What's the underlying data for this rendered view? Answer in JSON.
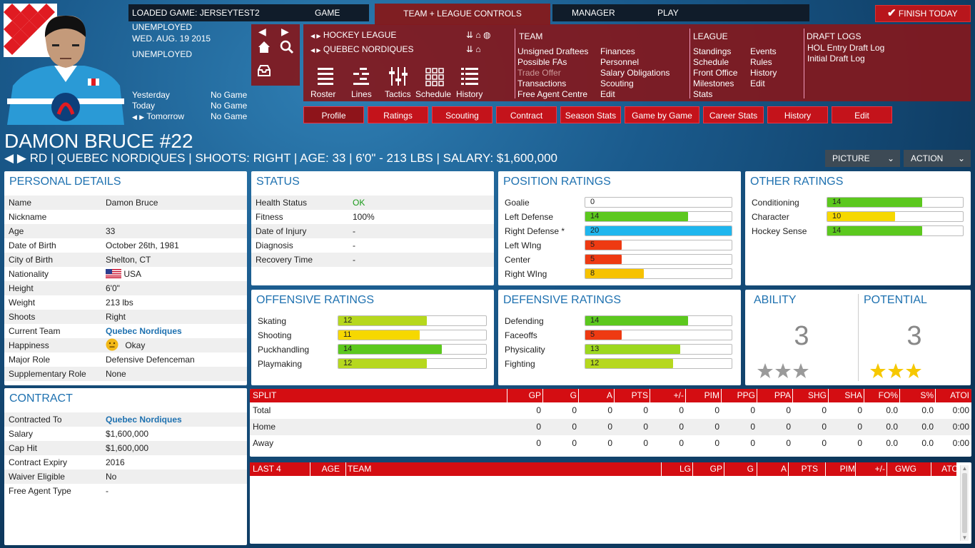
{
  "header": {
    "loaded_game_label": "LOADED GAME:",
    "loaded_game_value": "JERSEYTEST2",
    "game_tab": "GAME",
    "team_league_tab": "TEAM + LEAGUE CONTROLS",
    "manager_tab": "MANAGER",
    "play_tab": "PLAY",
    "finish_today": "FINISH TODAY",
    "status1": "UNEMPLOYED",
    "date": "WED. AUG. 19 2015",
    "status2": "UNEMPLOYED",
    "schedule": [
      {
        "day": "Yesterday",
        "game": "No Game"
      },
      {
        "day": "Today",
        "game": "No Game"
      },
      {
        "day": "Tomorrow",
        "game": "No Game"
      }
    ]
  },
  "controls": {
    "league": "HOCKEY LEAGUE",
    "team": "QUEBEC NORDIQUES",
    "tools": [
      "Roster",
      "Lines",
      "Tactics",
      "Schedule",
      "History"
    ],
    "team_menu_title": "TEAM",
    "team_menu_col1": [
      "Unsigned Draftees",
      "Possible FAs",
      "Trade Offer",
      "Transactions",
      "Free Agent Centre"
    ],
    "team_menu_col2": [
      "Finances",
      "Personnel",
      "Salary Obligations",
      "Scouting",
      "Edit"
    ],
    "league_menu_title": "LEAGUE",
    "league_menu_col1": [
      "Standings",
      "Schedule",
      "Front Office",
      "Milestones",
      "Stats"
    ],
    "league_menu_col2": [
      "Events",
      "Rules",
      "History",
      "Edit"
    ],
    "draft_title": "DRAFT LOGS",
    "draft_items": [
      "HOL Entry Draft Log",
      "Initial Draft Log"
    ]
  },
  "player_tabs": [
    "Profile",
    "Ratings",
    "Scouting",
    "Contract",
    "Season Stats",
    "Game by Game",
    "Career Stats",
    "History",
    "Edit"
  ],
  "player": {
    "name_number": "DAMON BRUCE #22",
    "info": "RD | QUEBEC NORDIQUES | SHOOTS: RIGHT | AGE: 33 | 6'0\" - 213 LBS | SALARY: $1,600,000",
    "picture_btn": "PICTURE",
    "action_btn": "ACTION"
  },
  "personal": {
    "title": "PERSONAL DETAILS",
    "rows": [
      {
        "label": "Name",
        "value": "Damon Bruce"
      },
      {
        "label": "Nickname",
        "value": ""
      },
      {
        "label": "Age",
        "value": "33"
      },
      {
        "label": "Date of Birth",
        "value": "October 26th, 1981"
      },
      {
        "label": "City of Birth",
        "value": "Shelton, CT"
      },
      {
        "label": "Nationality",
        "value": "USA"
      },
      {
        "label": "Height",
        "value": "6'0\""
      },
      {
        "label": "Weight",
        "value": "213 lbs"
      },
      {
        "label": "Shoots",
        "value": "Right"
      },
      {
        "label": "Current Team",
        "value": "Quebec Nordiques"
      },
      {
        "label": "Happiness",
        "value": "Okay"
      },
      {
        "label": "Major Role",
        "value": "Defensive Defenceman"
      },
      {
        "label": "Supplementary Role",
        "value": "None"
      }
    ]
  },
  "contract": {
    "title": "CONTRACT",
    "rows": [
      {
        "label": "Contracted To",
        "value": "Quebec Nordiques"
      },
      {
        "label": "Salary",
        "value": "$1,600,000"
      },
      {
        "label": "Cap Hit",
        "value": "$1,600,000"
      },
      {
        "label": "Contract Expiry",
        "value": "2016"
      },
      {
        "label": "Waiver Eligible",
        "value": "No"
      },
      {
        "label": "Free Agent Type",
        "value": "-"
      }
    ]
  },
  "status": {
    "title": "STATUS",
    "rows": [
      {
        "label": "Health Status",
        "value": "OK"
      },
      {
        "label": "Fitness",
        "value": "100%"
      },
      {
        "label": "Date of Injury",
        "value": "-"
      },
      {
        "label": "Diagnosis",
        "value": "-"
      },
      {
        "label": "Recovery Time",
        "value": "-"
      }
    ]
  },
  "position_ratings": {
    "title": "POSITION RATINGS",
    "rows": [
      {
        "label": "Goalie",
        "value": 0,
        "color": "#ffffff"
      },
      {
        "label": "Left Defense",
        "value": 14,
        "color": "#5cc81e"
      },
      {
        "label": "Right Defense *",
        "value": 20,
        "color": "#1fb6ee"
      },
      {
        "label": "Left WIng",
        "value": 5,
        "color": "#ee3a12"
      },
      {
        "label": "Center",
        "value": 5,
        "color": "#ee3a12"
      },
      {
        "label": "Right WIng",
        "value": 8,
        "color": "#f6c200"
      }
    ]
  },
  "other_ratings": {
    "title": "OTHER RATINGS",
    "rows": [
      {
        "label": "Conditioning",
        "value": 14,
        "color": "#5cc81e"
      },
      {
        "label": "Character",
        "value": 10,
        "color": "#f6d800"
      },
      {
        "label": "Hockey Sense",
        "value": 14,
        "color": "#5cc81e"
      }
    ]
  },
  "offensive_ratings": {
    "title": "OFFENSIVE RATINGS",
    "rows": [
      {
        "label": "Skating",
        "value": 12,
        "color": "#b6d81e"
      },
      {
        "label": "Shooting",
        "value": 11,
        "color": "#f6d800"
      },
      {
        "label": "Puckhandling",
        "value": 14,
        "color": "#5cc81e"
      },
      {
        "label": "Playmaking",
        "value": 12,
        "color": "#b6d81e"
      }
    ]
  },
  "defensive_ratings": {
    "title": "DEFENSIVE RATINGS",
    "rows": [
      {
        "label": "Defending",
        "value": 14,
        "color": "#5cc81e"
      },
      {
        "label": "Faceoffs",
        "value": 5,
        "color": "#ee3a12"
      },
      {
        "label": "Physicality",
        "value": 13,
        "color": "#9cd81e"
      },
      {
        "label": "Fighting",
        "value": 12,
        "color": "#b6d81e"
      }
    ]
  },
  "ability": {
    "title": "ABILITY",
    "value": "3",
    "stars": 3
  },
  "potential": {
    "title": "POTENTIAL",
    "value": "3",
    "stars": 3
  },
  "split_table": {
    "headers": [
      "SPLIT",
      "GP",
      "G",
      "A",
      "PTS",
      "+/-",
      "PIM",
      "PPG",
      "PPA",
      "SHG",
      "SHA",
      "FO%",
      "S%",
      "ATOI"
    ],
    "rows": [
      [
        "Total",
        "0",
        "0",
        "0",
        "0",
        "0",
        "0",
        "0",
        "0",
        "0",
        "0",
        "0.0",
        "0.0",
        "0:00"
      ],
      [
        "Home",
        "0",
        "0",
        "0",
        "0",
        "0",
        "0",
        "0",
        "0",
        "0",
        "0",
        "0.0",
        "0.0",
        "0:00"
      ],
      [
        "Away",
        "0",
        "0",
        "0",
        "0",
        "0",
        "0",
        "0",
        "0",
        "0",
        "0",
        "0.0",
        "0.0",
        "0:00"
      ]
    ]
  },
  "last4_table": {
    "headers": [
      "LAST 4",
      "AGE",
      "TEAM",
      "LG",
      "GP",
      "G",
      "A",
      "PTS",
      "PIM",
      "+/-",
      "GWG",
      "ATOI"
    ]
  }
}
